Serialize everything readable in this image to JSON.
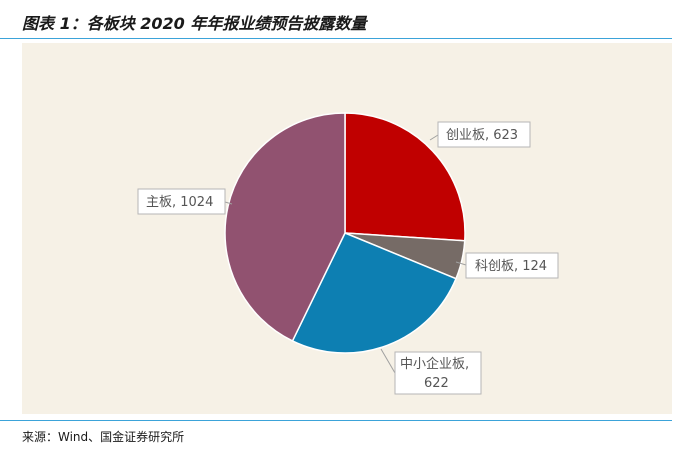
{
  "header": {
    "title": "图表 1：各板块 2020 年年报业绩预告披露数量"
  },
  "footer": {
    "source": "来源：Wind、国金证券研究所"
  },
  "chart_data": {
    "type": "pie",
    "title": "",
    "slices": [
      {
        "name": "创业板",
        "value": 623,
        "color": "#c00000",
        "label": "创业板, 623"
      },
      {
        "name": "科创板",
        "value": 124,
        "color": "#766b66",
        "label": "科创板, 124"
      },
      {
        "name": "中小企业板",
        "value": 622,
        "color": "#0d7fb2",
        "label_lines": [
          "中小企业板,",
          "622"
        ]
      },
      {
        "name": "主板",
        "value": 1024,
        "color": "#915270",
        "label": "主板, 1024"
      }
    ],
    "start_angle": "12 o'clock",
    "direction": "clockwise",
    "legend": "none",
    "data_labels": "callouts with leader lines"
  }
}
